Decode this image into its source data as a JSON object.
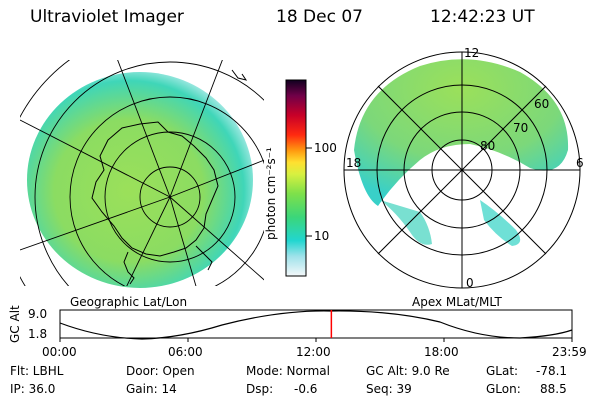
{
  "header": {
    "instrument": "Ultraviolet Imager",
    "date": "18 Dec 07",
    "time": "12:42:23 UT"
  },
  "colorbar": {
    "unit_label": "photon cm⁻²s⁻¹",
    "ticks": [
      "100",
      "10"
    ]
  },
  "geographic_panel": {
    "caption": "Geographic Lat/Lon"
  },
  "apex_panel": {
    "caption": "Apex MLat/MLT",
    "lat_labels": [
      "60",
      "70",
      "80"
    ],
    "mlt_labels": [
      "12",
      "18",
      "6",
      "0"
    ]
  },
  "altitude_plot": {
    "ylabel": "GC Alt",
    "y_ticks": [
      "9.0",
      "1.8"
    ],
    "x_ticks": [
      "00:00",
      "06:00",
      "12:00",
      "18:00",
      "23:59"
    ],
    "current_time_fraction": 0.53,
    "marker_color": "#ff0000"
  },
  "info": {
    "filter": "Flt: LBHL",
    "ip": "IP: 36.0",
    "door": "Door: Open",
    "gain": "Gain: 14",
    "mode": "Mode: Normal",
    "dsp_label": "Dsp:",
    "dsp_value": "-0.6",
    "gc_alt": "GC Alt: 9.0 Re",
    "seq": "Seq: 39",
    "glat_label": "GLat:",
    "glat_value": "-78.1",
    "glon_label": "GLon:",
    "glon_value": "88.5"
  }
}
